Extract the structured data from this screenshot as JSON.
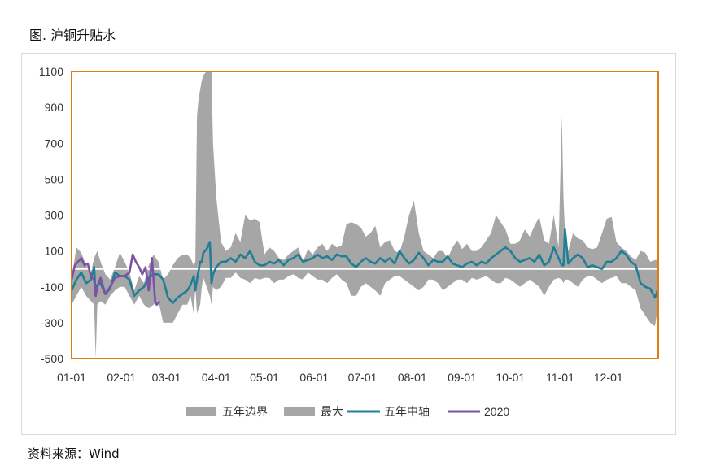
{
  "figure_title": "图. 沪铜升贴水",
  "source_note": "资料来源：Wind",
  "chart_data": {
    "type": "area",
    "title": "",
    "xlabel": "",
    "ylabel": "",
    "ylim": [
      -500,
      1100
    ],
    "yticks": [
      -500,
      -300,
      -100,
      100,
      300,
      500,
      700,
      900,
      1100
    ],
    "xlim": [
      0,
      365
    ],
    "xtick_labels": [
      "01-01",
      "02-01",
      "03-01",
      "04-01",
      "05-01",
      "06-01",
      "07-01",
      "08-01",
      "09-01",
      "10-01",
      "11-01",
      "12-01"
    ],
    "xtick_days": [
      0,
      31,
      59,
      90,
      120,
      151,
      181,
      212,
      243,
      273,
      304,
      334
    ],
    "grid": false,
    "legend_position": "bottom",
    "legend": [
      "五年边界",
      "最大",
      "五年中轴",
      "2020"
    ],
    "colors": {
      "band": "#a6a6a6",
      "median": "#1f7f96",
      "y2020": "#7b52a6",
      "plot_border": "#e07b1a",
      "zero_line": "#ffffff"
    },
    "x_days": [
      0,
      3,
      6,
      9,
      12,
      14,
      15,
      16,
      18,
      21,
      24,
      27,
      30,
      33,
      36,
      39,
      42,
      45,
      48,
      51,
      54,
      57,
      60,
      63,
      66,
      69,
      72,
      74,
      76,
      77,
      78,
      79,
      80,
      81,
      82,
      84,
      86,
      87,
      88,
      90,
      93,
      96,
      99,
      102,
      105,
      108,
      111,
      114,
      117,
      120,
      123,
      126,
      129,
      132,
      135,
      138,
      141,
      144,
      147,
      150,
      153,
      156,
      159,
      162,
      165,
      168,
      171,
      174,
      177,
      180,
      183,
      186,
      189,
      192,
      195,
      198,
      201,
      204,
      207,
      210,
      213,
      216,
      219,
      222,
      225,
      228,
      231,
      234,
      237,
      240,
      243,
      246,
      249,
      252,
      255,
      258,
      261,
      264,
      267,
      270,
      273,
      276,
      279,
      282,
      285,
      288,
      291,
      294,
      297,
      300,
      303,
      305,
      306,
      307,
      309,
      312,
      315,
      318,
      321,
      324,
      327,
      330,
      333,
      336,
      339,
      342,
      345,
      348,
      351,
      354,
      357,
      360,
      363,
      365
    ],
    "series": [
      {
        "name": "五年边界",
        "upper": [
          -50,
          120,
          90,
          20,
          -20,
          60,
          80,
          100,
          40,
          -30,
          -60,
          10,
          90,
          40,
          -20,
          -120,
          -40,
          -80,
          20,
          80,
          40,
          -60,
          -30,
          20,
          60,
          80,
          80,
          60,
          20,
          40,
          850,
          950,
          1000,
          1050,
          1080,
          1100,
          1100,
          1100,
          700,
          400,
          150,
          100,
          120,
          200,
          150,
          300,
          270,
          280,
          260,
          80,
          120,
          100,
          60,
          50,
          80,
          100,
          120,
          40,
          110,
          80,
          120,
          140,
          100,
          140,
          120,
          130,
          250,
          260,
          250,
          230,
          180,
          200,
          240,
          120,
          150,
          160,
          100,
          90,
          180,
          300,
          380,
          200,
          100,
          80,
          60,
          100,
          100,
          60,
          120,
          160,
          110,
          140,
          100,
          100,
          120,
          160,
          200,
          300,
          260,
          220,
          140,
          140,
          160,
          220,
          180,
          240,
          290,
          160,
          140,
          300,
          120,
          850,
          400,
          200,
          100,
          200,
          170,
          160,
          120,
          110,
          120,
          200,
          280,
          290,
          150,
          120,
          100,
          70,
          50,
          100,
          90,
          40,
          50,
          50
        ],
        "lower": [
          -200,
          -150,
          -100,
          -150,
          -180,
          -200,
          -500,
          -200,
          -180,
          -200,
          -150,
          -120,
          -100,
          -100,
          -150,
          -200,
          -150,
          -200,
          -220,
          -200,
          -180,
          -300,
          -300,
          -300,
          -250,
          -200,
          -200,
          -150,
          -250,
          -100,
          -250,
          -220,
          -200,
          -100,
          -50,
          -100,
          -150,
          -200,
          -100,
          -120,
          -100,
          -50,
          -50,
          -20,
          -50,
          -60,
          -80,
          -50,
          -60,
          -50,
          -50,
          -80,
          -60,
          -60,
          -40,
          -30,
          -50,
          -60,
          -20,
          -40,
          -60,
          -60,
          -80,
          -50,
          -30,
          -60,
          -80,
          -150,
          -150,
          -100,
          -80,
          -100,
          -120,
          -150,
          -80,
          -60,
          -40,
          -40,
          -60,
          -80,
          -100,
          -120,
          -100,
          -60,
          -60,
          -80,
          -120,
          -100,
          -80,
          -60,
          -60,
          -80,
          -50,
          -60,
          -50,
          -40,
          -60,
          -80,
          -80,
          -50,
          -60,
          -80,
          -100,
          -80,
          -60,
          -80,
          -100,
          -150,
          -100,
          -60,
          -50,
          -60,
          -80,
          -60,
          -60,
          -80,
          -100,
          -60,
          -40,
          -40,
          -60,
          -80,
          -60,
          -50,
          -40,
          -80,
          -80,
          -100,
          -120,
          -220,
          -260,
          -300,
          -320,
          -200
        ]
      },
      {
        "name": "五年中轴",
        "values": [
          -120,
          -60,
          -20,
          -80,
          -60,
          10,
          -150,
          -90,
          -80,
          -140,
          -110,
          -20,
          -40,
          -40,
          -60,
          -150,
          -120,
          -100,
          -50,
          -30,
          -30,
          -60,
          -160,
          -190,
          -160,
          -140,
          -120,
          -90,
          -40,
          -120,
          -60,
          -10,
          40,
          40,
          90,
          110,
          150,
          -80,
          -30,
          10,
          40,
          40,
          60,
          40,
          80,
          60,
          100,
          40,
          20,
          20,
          40,
          30,
          50,
          20,
          50,
          60,
          80,
          40,
          50,
          60,
          80,
          60,
          70,
          50,
          80,
          70,
          70,
          30,
          10,
          40,
          60,
          40,
          30,
          60,
          40,
          60,
          30,
          100,
          60,
          30,
          50,
          90,
          60,
          20,
          50,
          40,
          40,
          70,
          30,
          20,
          10,
          30,
          40,
          20,
          40,
          30,
          60,
          80,
          100,
          120,
          100,
          60,
          40,
          50,
          60,
          40,
          80,
          20,
          40,
          120,
          60,
          20,
          20,
          220,
          30,
          60,
          80,
          60,
          10,
          20,
          10,
          0,
          40,
          40,
          60,
          100,
          80,
          40,
          20,
          -80,
          -100,
          -110,
          -160,
          -110
        ]
      },
      {
        "name": "2020",
        "x_days": [
          0,
          2,
          4,
          6,
          8,
          10,
          12,
          14,
          15,
          16,
          18,
          21,
          24,
          27,
          30,
          33,
          36,
          38,
          40,
          42,
          44,
          46,
          48,
          50,
          51,
          52,
          53,
          55
        ],
        "values": [
          -60,
          20,
          40,
          60,
          20,
          30,
          -40,
          -60,
          -150,
          -100,
          -50,
          -140,
          -100,
          -50,
          -40,
          -40,
          -20,
          80,
          40,
          10,
          -30,
          10,
          -120,
          60,
          -60,
          -180,
          -200,
          -180
        ]
      }
    ]
  }
}
